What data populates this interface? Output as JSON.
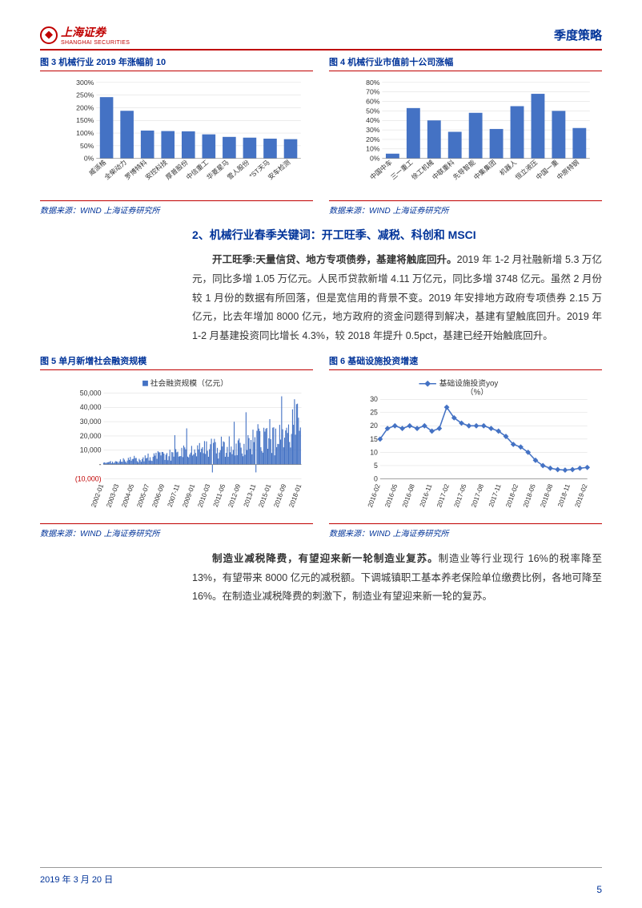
{
  "header": {
    "logo_main": "上海证券",
    "logo_sub": "SHANGHAI SECURITIES",
    "right": "季度策略"
  },
  "chart3": {
    "title": "图 3 机械行业 2019 年涨幅前 10",
    "type": "bar",
    "categories": [
      "威派格",
      "全柴动力",
      "罗博特科",
      "安控科技",
      "厚普股份",
      "中信重工",
      "华菱星马",
      "雪人股份",
      "*ST天马",
      "安车检测"
    ],
    "values": [
      242,
      188,
      110,
      108,
      107,
      95,
      85,
      82,
      78,
      76
    ],
    "ylim": [
      0,
      300
    ],
    "ytick_step": 50,
    "yticks": [
      "0%",
      "50%",
      "100%",
      "150%",
      "200%",
      "250%",
      "300%"
    ],
    "bar_color": "#4472c4",
    "grid_color": "#d9d9d9",
    "source": "数据来源：WIND  上海证券研究所"
  },
  "chart4": {
    "title": "图 4 机械行业市值前十公司涨幅",
    "type": "bar",
    "categories": [
      "中国中车",
      "三一重工",
      "徐工机械",
      "中联重科",
      "先导智能",
      "中集集团",
      "机器人",
      "恒立液压",
      "中国一重",
      "中原特钢"
    ],
    "values": [
      5,
      53,
      40,
      28,
      48,
      31,
      55,
      68,
      50,
      32
    ],
    "ylim": [
      0,
      80
    ],
    "ytick_step": 10,
    "yticks": [
      "0%",
      "10%",
      "20%",
      "30%",
      "40%",
      "50%",
      "60%",
      "70%",
      "80%"
    ],
    "bar_color": "#4472c4",
    "grid_color": "#d9d9d9",
    "source": "数据来源：WIND  上海证券研究所"
  },
  "section2": {
    "title": "2、机械行业春季关键词：开工旺季、减税、科创和 MSCI",
    "para1_bold": "开工旺季:天量信贷、地方专项债券，基建将触底回升。",
    "para1_rest": "2019 年 1-2 月社融新增 5.3 万亿元，同比多增 1.05 万亿元。人民币贷款新增 4.11 万亿元，同比多增 3748 亿元。虽然 2 月份较 1 月份的数据有所回落，但是宽信用的背景不变。2019 年安排地方政府专项债券 2.15 万亿元，比去年增加 8000 亿元，地方政府的资金问题得到解决，基建有望触底回升。2019 年 1-2 月基建投资同比增长 4.3%，较 2018 年提升 0.5pct，基建已经开始触底回升。"
  },
  "chart5": {
    "title": "图 5 单月新增社会融资规模",
    "type": "bar-dense",
    "legend": "社会融资规模（亿元）",
    "ylim": [
      -10000,
      50000
    ],
    "ytick_step": 10000,
    "yticks": [
      "(10,000)",
      "-",
      "10,000",
      "20,000",
      "30,000",
      "40,000",
      "50,000"
    ],
    "xlabels": [
      "2002-01",
      "2003-03",
      "2004-05",
      "2005-07",
      "2006-09",
      "2007-11",
      "2009-01",
      "2010-03",
      "2011-05",
      "2012-09",
      "2013-11",
      "2015-01",
      "2016-09",
      "2018-01"
    ],
    "bar_color": "#4472c4",
    "grid_color": "#d9d9d9",
    "source": "数据来源：WIND  上海证券研究所"
  },
  "chart6": {
    "title": "图 6 基础设施投资增速",
    "type": "line",
    "legend": "基础设施投资yoy（%）",
    "ylim": [
      0,
      30
    ],
    "ytick_step": 5,
    "yticks": [
      "0",
      "5",
      "10",
      "15",
      "20",
      "25",
      "30"
    ],
    "xlabels": [
      "2016-02",
      "2016-05",
      "2016-08",
      "2016-11",
      "2017-02",
      "2017-05",
      "2017-08",
      "2017-11",
      "2018-02",
      "2018-05",
      "2018-08",
      "2018-11",
      "2019-02"
    ],
    "values": [
      15,
      19,
      20,
      19,
      20,
      19,
      20,
      18,
      19,
      27,
      23,
      21,
      20,
      20,
      20,
      19,
      18,
      16,
      13,
      12,
      10,
      7,
      5,
      4,
      3.5,
      3.3,
      3.5,
      4,
      4.3
    ],
    "line_color": "#4472c4",
    "marker_color": "#4472c4",
    "source": "数据来源：WIND  上海证券研究所"
  },
  "para2": {
    "bold": "制造业减税降费，有望迎来新一轮制造业复苏。",
    "rest": "制造业等行业现行 16%的税率降至 13%，有望带来 8000 亿元的减税额。下调城镇职工基本养老保险单位缴费比例，各地可降至 16%。在制造业减税降费的刺激下，制造业有望迎来新一轮的复苏。"
  },
  "footer": {
    "date": "2019 年 3 月 20 日",
    "page": "5"
  }
}
